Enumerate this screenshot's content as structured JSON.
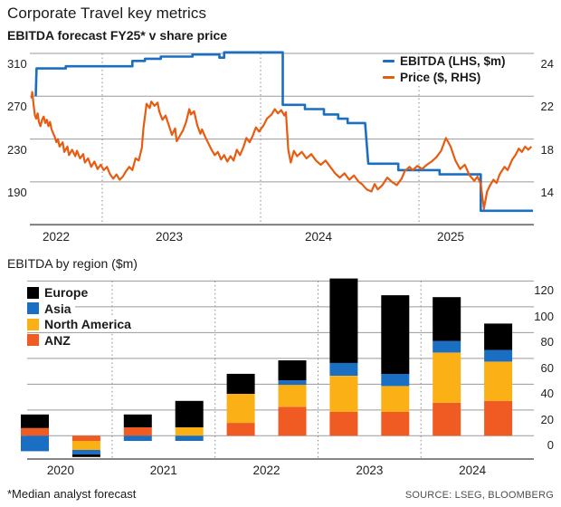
{
  "page": {
    "title": "Corporate Travel key metrics",
    "subtitle": "EBITDA forecast FY25* v share price",
    "footnote": "*Median analyst forecast",
    "source": "SOURCE: LSEG, BLOOMBERG"
  },
  "colors": {
    "ebitda_blue": "#1b6fc2",
    "price_orange": "#e85c12",
    "europe_black": "#000000",
    "asia_blue": "#1b6fc2",
    "north_america_yellow": "#fbb016",
    "anz_orange": "#f05a23",
    "grid_gray": "#9a9a9a",
    "axis_gray": "#757575"
  },
  "chart_data": [
    {
      "type": "line",
      "title": "EBITDA forecast FY25* v share price",
      "x_axis": {
        "labels": [
          "2022",
          "2023",
          "2024",
          "2025"
        ],
        "year_separators": [
          2023,
          2024,
          2025
        ],
        "range": [
          2022.55,
          2025.73
        ]
      },
      "y_left": {
        "ticks": [
          310,
          270,
          230,
          190
        ]
      },
      "y_right": {
        "ticks": [
          24,
          22,
          18,
          14
        ]
      },
      "legend_position": "top-right",
      "series": [
        {
          "name": "EBITDA (LHS, $m)",
          "axis": "left",
          "color": "#1b6fc2",
          "points": [
            [
              2022.58,
              270
            ],
            [
              2022.585,
              296
            ],
            [
              2022.77,
              296
            ],
            [
              2022.77,
              298
            ],
            [
              2023.19,
              298
            ],
            [
              2023.19,
              303
            ],
            [
              2023.27,
              303
            ],
            [
              2023.27,
              305
            ],
            [
              2023.37,
              305
            ],
            [
              2023.37,
              307
            ],
            [
              2023.57,
              307
            ],
            [
              2023.57,
              309
            ],
            [
              2023.74,
              309
            ],
            [
              2023.74,
              306
            ],
            [
              2023.77,
              306
            ],
            [
              2023.77,
              311
            ],
            [
              2024.14,
              311
            ],
            [
              2024.14,
              262
            ],
            [
              2024.28,
              262
            ],
            [
              2024.28,
              258
            ],
            [
              2024.4,
              258
            ],
            [
              2024.4,
              253
            ],
            [
              2024.49,
              253
            ],
            [
              2024.49,
              249
            ],
            [
              2024.55,
              249
            ],
            [
              2024.55,
              245
            ],
            [
              2024.66,
              245
            ],
            [
              2024.68,
              207
            ],
            [
              2024.87,
              207
            ],
            [
              2024.87,
              201
            ],
            [
              2025.13,
              201
            ],
            [
              2025.13,
              197
            ],
            [
              2025.39,
              197
            ],
            [
              2025.39,
              163
            ],
            [
              2025.72,
              163
            ]
          ]
        },
        {
          "name": "Price ($, RHS)",
          "axis": "right",
          "color": "#e85c12",
          "points": [
            [
              2022.553,
              21.8
            ],
            [
              2022.558,
              22.2
            ],
            [
              2022.566,
              21.2
            ],
            [
              2022.575,
              20.2
            ],
            [
              2022.583,
              19.9
            ],
            [
              2022.592,
              20.4
            ],
            [
              2022.6,
              19.6
            ],
            [
              2022.61,
              19.2
            ],
            [
              2022.62,
              19.8
            ],
            [
              2022.63,
              20.1
            ],
            [
              2022.64,
              19.5
            ],
            [
              2022.65,
              19.8
            ],
            [
              2022.66,
              19.2
            ],
            [
              2022.67,
              19.6
            ],
            [
              2022.68,
              18.9
            ],
            [
              2022.7,
              18.2
            ],
            [
              2022.71,
              17.7
            ],
            [
              2022.72,
              18.0
            ],
            [
              2022.73,
              17.3
            ],
            [
              2022.75,
              17.7
            ],
            [
              2022.76,
              16.8
            ],
            [
              2022.78,
              17.3
            ],
            [
              2022.79,
              16.5
            ],
            [
              2022.81,
              17.0
            ],
            [
              2022.83,
              16.4
            ],
            [
              2022.84,
              16.9
            ],
            [
              2022.86,
              16.2
            ],
            [
              2022.88,
              16.6
            ],
            [
              2022.89,
              15.8
            ],
            [
              2022.91,
              16.2
            ],
            [
              2022.93,
              15.4
            ],
            [
              2022.95,
              15.9
            ],
            [
              2022.97,
              15.2
            ],
            [
              2022.99,
              15.6
            ],
            [
              2023.01,
              15.1
            ],
            [
              2023.03,
              15.4
            ],
            [
              2023.05,
              14.7
            ],
            [
              2023.07,
              14.3
            ],
            [
              2023.09,
              14.7
            ],
            [
              2023.11,
              14.2
            ],
            [
              2023.13,
              14.5
            ],
            [
              2023.15,
              15.0
            ],
            [
              2023.17,
              15.4
            ],
            [
              2023.19,
              15.1
            ],
            [
              2023.21,
              16.2
            ],
            [
              2023.23,
              16.0
            ],
            [
              2023.25,
              17.2
            ],
            [
              2023.26,
              19.0
            ],
            [
              2023.28,
              21.3
            ],
            [
              2023.3,
              20.9
            ],
            [
              2023.31,
              21.5
            ],
            [
              2023.33,
              21.1
            ],
            [
              2023.35,
              21.4
            ],
            [
              2023.36,
              20.6
            ],
            [
              2023.38,
              19.8
            ],
            [
              2023.4,
              20.2
            ],
            [
              2023.42,
              19.3
            ],
            [
              2023.44,
              18.4
            ],
            [
              2023.46,
              19.0
            ],
            [
              2023.47,
              17.8
            ],
            [
              2023.49,
              18.3
            ],
            [
              2023.51,
              18.8
            ],
            [
              2023.53,
              19.6
            ],
            [
              2023.55,
              20.8
            ],
            [
              2023.56,
              20.3
            ],
            [
              2023.58,
              20.6
            ],
            [
              2023.6,
              19.3
            ],
            [
              2023.62,
              18.5
            ],
            [
              2023.63,
              18.9
            ],
            [
              2023.65,
              18.2
            ],
            [
              2023.67,
              17.6
            ],
            [
              2023.69,
              17.0
            ],
            [
              2023.71,
              16.5
            ],
            [
              2023.73,
              16.8
            ],
            [
              2023.75,
              16.1
            ],
            [
              2023.77,
              16.5
            ],
            [
              2023.79,
              15.9
            ],
            [
              2023.81,
              16.4
            ],
            [
              2023.83,
              16.0
            ],
            [
              2023.85,
              17.0
            ],
            [
              2023.87,
              16.5
            ],
            [
              2023.89,
              17.2
            ],
            [
              2023.91,
              18.1
            ],
            [
              2023.93,
              17.7
            ],
            [
              2023.95,
              18.3
            ],
            [
              2023.97,
              19.1
            ],
            [
              2023.99,
              18.7
            ],
            [
              2024.02,
              19.3
            ],
            [
              2024.04,
              19.9
            ],
            [
              2024.07,
              20.3
            ],
            [
              2024.09,
              20.8
            ],
            [
              2024.11,
              20.4
            ],
            [
              2024.13,
              20.7
            ],
            [
              2024.15,
              20.2
            ],
            [
              2024.16,
              20.5
            ],
            [
              2024.175,
              17.0
            ],
            [
              2024.19,
              15.8
            ],
            [
              2024.21,
              16.9
            ],
            [
              2024.23,
              16.4
            ],
            [
              2024.26,
              16.8
            ],
            [
              2024.29,
              16.2
            ],
            [
              2024.32,
              16.6
            ],
            [
              2024.35,
              16.0
            ],
            [
              2024.38,
              15.6
            ],
            [
              2024.41,
              16.0
            ],
            [
              2024.44,
              15.4
            ],
            [
              2024.47,
              14.8
            ],
            [
              2024.5,
              14.4
            ],
            [
              2024.53,
              14.8
            ],
            [
              2024.56,
              14.2
            ],
            [
              2024.59,
              14.6
            ],
            [
              2024.62,
              14.0
            ],
            [
              2024.64,
              13.8
            ],
            [
              2024.67,
              13.3
            ],
            [
              2024.7,
              13.1
            ],
            [
              2024.72,
              13.8
            ],
            [
              2024.74,
              13.3
            ],
            [
              2024.77,
              13.7
            ],
            [
              2024.8,
              14.4
            ],
            [
              2024.83,
              14.0
            ],
            [
              2024.86,
              13.7
            ],
            [
              2024.89,
              14.3
            ],
            [
              2024.91,
              15.0
            ],
            [
              2024.94,
              15.4
            ],
            [
              2024.96,
              15.1
            ],
            [
              2024.99,
              15.5
            ],
            [
              2025.02,
              15.2
            ],
            [
              2025.05,
              15.6
            ],
            [
              2025.08,
              15.9
            ],
            [
              2025.11,
              16.3
            ],
            [
              2025.14,
              16.9
            ],
            [
              2025.17,
              18.1
            ],
            [
              2025.2,
              17.3
            ],
            [
              2025.23,
              16.0
            ],
            [
              2025.26,
              15.2
            ],
            [
              2025.29,
              15.6
            ],
            [
              2025.32,
              14.6
            ],
            [
              2025.35,
              14.1
            ],
            [
              2025.37,
              14.5
            ],
            [
              2025.39,
              13.8
            ],
            [
              2025.41,
              11.5
            ],
            [
              2025.43,
              13.1
            ],
            [
              2025.45,
              13.7
            ],
            [
              2025.47,
              14.2
            ],
            [
              2025.49,
              13.9
            ],
            [
              2025.51,
              14.7
            ],
            [
              2025.54,
              15.4
            ],
            [
              2025.56,
              15.1
            ],
            [
              2025.59,
              16.1
            ],
            [
              2025.61,
              16.5
            ],
            [
              2025.63,
              17.1
            ],
            [
              2025.65,
              16.8
            ],
            [
              2025.67,
              17.3
            ],
            [
              2025.69,
              17.0
            ],
            [
              2025.71,
              17.3
            ]
          ]
        }
      ]
    },
    {
      "type": "stacked-bar",
      "title": "EBITDA by region ($m)",
      "categories": [
        "2020",
        "2021",
        "2022",
        "2023",
        "2024"
      ],
      "bars_per_category": 2,
      "y_ticks": [
        120,
        100,
        80,
        60,
        40,
        20,
        0
      ],
      "ylim": [
        -18.5,
        123
      ],
      "stack_order": [
        "ANZ",
        "North America",
        "Asia",
        "Europe"
      ],
      "series": [
        {
          "name": "Europe",
          "color": "#000000",
          "values": [
            10.5,
            -2,
            10,
            20.5,
            15.5,
            15.5,
            65.5,
            61,
            34,
            20.5
          ]
        },
        {
          "name": "Asia",
          "color": "#1b6fc2",
          "values": [
            -12,
            -3.5,
            -4,
            -4,
            0,
            3.5,
            10,
            9.5,
            9,
            9
          ]
        },
        {
          "name": "North America",
          "color": "#fbb016",
          "values": [
            0,
            -7,
            0,
            6.5,
            22.5,
            17,
            28,
            20,
            39,
            30.5
          ]
        },
        {
          "name": "ANZ",
          "color": "#f05a23",
          "values": [
            6,
            -4,
            6.5,
            0,
            10,
            22.5,
            18.5,
            18.5,
            25.5,
            27
          ]
        }
      ]
    }
  ]
}
